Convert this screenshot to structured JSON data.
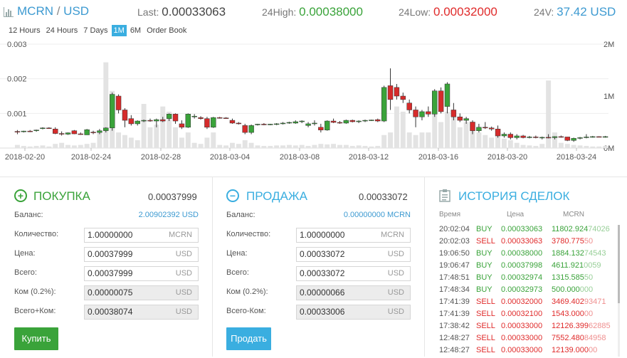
{
  "header": {
    "pair_base": "MCRN",
    "pair_sep": " / ",
    "pair_quote": "USD",
    "last_label": "Last: ",
    "last_value": "0.00033063",
    "high_label": "24High: ",
    "high_value": "0.00038000",
    "low_label": "24Low: ",
    "low_value": "0.00032000",
    "vol_label": "24V: ",
    "vol_value": "37.42 USD"
  },
  "tabs": [
    {
      "label": "12 Hours",
      "active": false
    },
    {
      "label": "24 Hours",
      "active": false
    },
    {
      "label": "7 Days",
      "active": false
    },
    {
      "label": "1M",
      "active": true
    },
    {
      "label": "6M",
      "active": false
    },
    {
      "label": "Order Book",
      "active": false
    }
  ],
  "chart_data": {
    "type": "candlestick",
    "y_left_ticks": [
      "0.003",
      "0.002",
      "0.001"
    ],
    "y_right_ticks": [
      "2M",
      "1M",
      "0M"
    ],
    "ylim": [
      0,
      0.003
    ],
    "vol_lim": [
      0,
      2000000
    ],
    "x_ticks": [
      "2018-02-20",
      "2018-02-24",
      "2018-02-28",
      "2018-03-04",
      "2018-03-08",
      "2018-03-12",
      "2018-03-16",
      "2018-03-20",
      "2018-03-24"
    ],
    "colors": {
      "up": "#3aa33a",
      "down": "#d62b2b",
      "volume": "#e3e3e3",
      "grid": "#eeeeee"
    },
    "candles": [
      {
        "o": 0.00048,
        "h": 0.00052,
        "l": 0.0004,
        "c": 0.00047,
        "v": 60000
      },
      {
        "o": 0.00047,
        "h": 0.0005,
        "l": 0.00045,
        "c": 0.00049,
        "v": 40000
      },
      {
        "o": 0.00049,
        "h": 0.00052,
        "l": 0.00046,
        "c": 0.00047,
        "v": 30000
      },
      {
        "o": 0.0005,
        "h": 0.00053,
        "l": 0.00047,
        "c": 0.00052,
        "v": 40000
      },
      {
        "o": 0.00056,
        "h": 0.0006,
        "l": 0.00054,
        "c": 0.00058,
        "v": 50000
      },
      {
        "o": 0.00058,
        "h": 0.0006,
        "l": 0.00056,
        "c": 0.00057,
        "v": 30000
      },
      {
        "o": 0.00055,
        "h": 0.0006,
        "l": 0.0004,
        "c": 0.00042,
        "v": 80000
      },
      {
        "o": 0.00042,
        "h": 0.00048,
        "l": 0.00036,
        "c": 0.0004,
        "v": 100000
      },
      {
        "o": 0.0004,
        "h": 0.00045,
        "l": 0.00038,
        "c": 0.00044,
        "v": 60000
      },
      {
        "o": 0.0005,
        "h": 0.00052,
        "l": 0.0004,
        "c": 0.00041,
        "v": 50000
      },
      {
        "o": 0.00041,
        "h": 0.00045,
        "l": 0.00038,
        "c": 0.00039,
        "v": 60000
      },
      {
        "o": 0.00038,
        "h": 0.00055,
        "l": 0.00038,
        "c": 0.00053,
        "v": 80000
      },
      {
        "o": 0.00046,
        "h": 0.0005,
        "l": 0.0004,
        "c": 0.00045,
        "v": 100000
      },
      {
        "o": 0.00045,
        "h": 0.00055,
        "l": 0.0004,
        "c": 0.0005,
        "v": 300000
      },
      {
        "o": 0.0005,
        "h": 0.0006,
        "l": 0.00045,
        "c": 0.00058,
        "v": 1650000
      },
      {
        "o": 0.00058,
        "h": 0.0016,
        "l": 0.0005,
        "c": 0.00155,
        "v": 1100000
      },
      {
        "o": 0.0015,
        "h": 0.00155,
        "l": 0.001,
        "c": 0.0011,
        "v": 300000
      },
      {
        "o": 0.0011,
        "h": 0.00115,
        "l": 0.0006,
        "c": 0.0008,
        "v": 250000
      },
      {
        "o": 0.00085,
        "h": 0.00095,
        "l": 0.00065,
        "c": 0.0007,
        "v": 200000
      },
      {
        "o": 0.0007,
        "h": 0.0008,
        "l": 0.00065,
        "c": 0.00078,
        "v": 150000
      },
      {
        "o": 0.00078,
        "h": 0.00082,
        "l": 0.00075,
        "c": 0.0008,
        "v": 850000
      },
      {
        "o": 0.0008,
        "h": 0.00085,
        "l": 0.00076,
        "c": 0.00078,
        "v": 400000
      },
      {
        "o": 0.00078,
        "h": 0.00085,
        "l": 0.0006,
        "c": 0.00082,
        "v": 450000
      },
      {
        "o": 0.00082,
        "h": 0.0009,
        "l": 0.00075,
        "c": 0.00078,
        "v": 800000
      },
      {
        "o": 0.00085,
        "h": 0.001,
        "l": 0.00078,
        "c": 0.00098,
        "v": 700000
      },
      {
        "o": 0.00098,
        "h": 0.001,
        "l": 0.0007,
        "c": 0.00078,
        "v": 400000
      },
      {
        "o": 0.0007,
        "h": 0.0008,
        "l": 0.00055,
        "c": 0.0006,
        "v": 200000
      },
      {
        "o": 0.0006,
        "h": 0.001,
        "l": 0.00058,
        "c": 0.00098,
        "v": 300000
      },
      {
        "o": 0.0009,
        "h": 0.00098,
        "l": 0.00085,
        "c": 0.00092,
        "v": 100000
      },
      {
        "o": 0.00088,
        "h": 0.00092,
        "l": 0.00082,
        "c": 0.00085,
        "v": 80000
      },
      {
        "o": 0.00085,
        "h": 0.0009,
        "l": 0.00055,
        "c": 0.0006,
        "v": 200000
      },
      {
        "o": 0.0006,
        "h": 0.0009,
        "l": 0.00058,
        "c": 0.00088,
        "v": 300000
      },
      {
        "o": 0.00088,
        "h": 0.0009,
        "l": 0.00085,
        "c": 0.00087,
        "v": 60000
      },
      {
        "o": 0.00087,
        "h": 0.00089,
        "l": 0.00085,
        "c": 0.00086,
        "v": 50000
      },
      {
        "o": 0.0008,
        "h": 0.00085,
        "l": 0.0007,
        "c": 0.00072,
        "v": 100000
      },
      {
        "o": 0.00072,
        "h": 0.00075,
        "l": 0.00068,
        "c": 0.0007,
        "v": 80000
      },
      {
        "o": 0.00065,
        "h": 0.0007,
        "l": 0.0004,
        "c": 0.00045,
        "v": 150000
      },
      {
        "o": 0.00045,
        "h": 0.00068,
        "l": 0.0004,
        "c": 0.00065,
        "v": 100000
      },
      {
        "o": 0.00068,
        "h": 0.0007,
        "l": 0.00065,
        "c": 0.00069,
        "v": 50000
      },
      {
        "o": 0.00069,
        "h": 0.00072,
        "l": 0.00066,
        "c": 0.00068,
        "v": 40000
      },
      {
        "o": 0.00068,
        "h": 0.0007,
        "l": 0.00066,
        "c": 0.00069,
        "v": 40000
      },
      {
        "o": 0.00069,
        "h": 0.00072,
        "l": 0.00066,
        "c": 0.0007,
        "v": 50000
      },
      {
        "o": 0.0007,
        "h": 0.00075,
        "l": 0.00068,
        "c": 0.00072,
        "v": 50000
      },
      {
        "o": 0.00072,
        "h": 0.00076,
        "l": 0.0007,
        "c": 0.00074,
        "v": 60000
      },
      {
        "o": 0.00072,
        "h": 0.0008,
        "l": 0.0007,
        "c": 0.00076,
        "v": 50000
      },
      {
        "o": 0.00076,
        "h": 0.0008,
        "l": 0.00072,
        "c": 0.00078,
        "v": 60000
      },
      {
        "o": 0.00065,
        "h": 0.00075,
        "l": 0.0006,
        "c": 0.0007,
        "v": 40000
      },
      {
        "o": 0.0007,
        "h": 0.0008,
        "l": 0.00065,
        "c": 0.00072,
        "v": 60000
      },
      {
        "o": 0.0006,
        "h": 0.0007,
        "l": 0.00045,
        "c": 0.00052,
        "v": 80000
      },
      {
        "o": 0.00052,
        "h": 0.0008,
        "l": 0.0005,
        "c": 0.00078,
        "v": 70000
      },
      {
        "o": 0.00078,
        "h": 0.00085,
        "l": 0.00072,
        "c": 0.00074,
        "v": 80000
      },
      {
        "o": 0.00074,
        "h": 0.00078,
        "l": 0.0007,
        "c": 0.00072,
        "v": 60000
      },
      {
        "o": 0.00072,
        "h": 0.00082,
        "l": 0.0007,
        "c": 0.0008,
        "v": 60000
      },
      {
        "o": 0.0008,
        "h": 0.00082,
        "l": 0.00074,
        "c": 0.00076,
        "v": 40000
      },
      {
        "o": 0.00076,
        "h": 0.0008,
        "l": 0.00072,
        "c": 0.00078,
        "v": 50000
      },
      {
        "o": 0.00078,
        "h": 0.00082,
        "l": 0.00075,
        "c": 0.0008,
        "v": 40000
      },
      {
        "o": 0.0008,
        "h": 0.00082,
        "l": 0.00078,
        "c": 0.00081,
        "v": 30000
      },
      {
        "o": 0.00082,
        "h": 0.00085,
        "l": 0.00075,
        "c": 0.00078,
        "v": 40000
      },
      {
        "o": 0.00078,
        "h": 0.0018,
        "l": 0.00075,
        "c": 0.00175,
        "v": 250000
      },
      {
        "o": 0.0018,
        "h": 0.0023,
        "l": 0.0011,
        "c": 0.0014,
        "v": 300000
      },
      {
        "o": 0.00175,
        "h": 0.00185,
        "l": 0.0014,
        "c": 0.0015,
        "v": 800000
      },
      {
        "o": 0.0015,
        "h": 0.0016,
        "l": 0.0013,
        "c": 0.0014,
        "v": 700000
      },
      {
        "o": 0.0013,
        "h": 0.0014,
        "l": 0.001,
        "c": 0.0011,
        "v": 300000
      },
      {
        "o": 0.0011,
        "h": 0.0012,
        "l": 0.0006,
        "c": 0.0009,
        "v": 250000
      },
      {
        "o": 0.0009,
        "h": 0.0011,
        "l": 0.0008,
        "c": 0.00105,
        "v": 300000
      },
      {
        "o": 0.00105,
        "h": 0.0012,
        "l": 0.0009,
        "c": 0.00098,
        "v": 300000
      },
      {
        "o": 0.00098,
        "h": 0.0017,
        "l": 0.0009,
        "c": 0.00165,
        "v": 800000
      },
      {
        "o": 0.00165,
        "h": 0.00175,
        "l": 0.001,
        "c": 0.00105,
        "v": 500000
      },
      {
        "o": 0.0012,
        "h": 0.0019,
        "l": 0.001,
        "c": 0.00185,
        "v": 700000
      },
      {
        "o": 0.0011,
        "h": 0.0013,
        "l": 0.0008,
        "c": 0.0009,
        "v": 600000
      },
      {
        "o": 0.0009,
        "h": 0.001,
        "l": 0.00075,
        "c": 0.0008,
        "v": 400000
      },
      {
        "o": 0.0008,
        "h": 0.0009,
        "l": 0.0007,
        "c": 0.00085,
        "v": 500000
      },
      {
        "o": 0.00075,
        "h": 0.0008,
        "l": 0.0004,
        "c": 0.0005,
        "v": 450000
      },
      {
        "o": 0.0005,
        "h": 0.0007,
        "l": 0.00045,
        "c": 0.0006,
        "v": 300000
      },
      {
        "o": 0.0006,
        "h": 0.00075,
        "l": 0.00055,
        "c": 0.00058,
        "v": 250000
      },
      {
        "o": 0.00058,
        "h": 0.00062,
        "l": 0.0005,
        "c": 0.00055,
        "v": 200000
      },
      {
        "o": 0.00055,
        "h": 0.00065,
        "l": 0.0003,
        "c": 0.00035,
        "v": 300000
      },
      {
        "o": 0.00035,
        "h": 0.00045,
        "l": 0.0003,
        "c": 0.0004,
        "v": 180000
      },
      {
        "o": 0.0004,
        "h": 0.00045,
        "l": 0.00025,
        "c": 0.0003,
        "v": 150000
      },
      {
        "o": 0.0003,
        "h": 0.0004,
        "l": 0.00025,
        "c": 0.00035,
        "v": 100000
      },
      {
        "o": 0.00035,
        "h": 0.00038,
        "l": 0.00028,
        "c": 0.0003,
        "v": 60000
      },
      {
        "o": 0.0003,
        "h": 0.00035,
        "l": 0.00028,
        "c": 0.00032,
        "v": 50000
      },
      {
        "o": 0.00032,
        "h": 0.00036,
        "l": 0.00028,
        "c": 0.0003,
        "v": 40000
      },
      {
        "o": 0.0003,
        "h": 0.00033,
        "l": 0.00025,
        "c": 0.00031,
        "v": 80000
      },
      {
        "o": 0.00031,
        "h": 0.0004,
        "l": 0.00028,
        "c": 0.0003,
        "v": 1300000
      },
      {
        "o": 0.0003,
        "h": 0.00034,
        "l": 0.00025,
        "c": 0.00033,
        "v": 300000
      },
      {
        "o": 0.00033,
        "h": 0.00036,
        "l": 0.0003,
        "c": 0.00032,
        "v": 100000
      },
      {
        "o": 0.00032,
        "h": 0.0003,
        "l": 0.0002,
        "c": 0.00022,
        "v": 80000
      },
      {
        "o": 0.00022,
        "h": 0.0003,
        "l": 0.00018,
        "c": 0.00028,
        "v": 60000
      },
      {
        "o": 0.00028,
        "h": 0.00032,
        "l": 0.00025,
        "c": 0.0003,
        "v": 50000
      },
      {
        "o": 0.0003,
        "h": 0.0004,
        "l": 0.00028,
        "c": 0.00032,
        "v": 40000
      },
      {
        "o": 0.00032,
        "h": 0.00035,
        "l": 0.0003,
        "c": 0.00033,
        "v": 30000
      },
      {
        "o": 0.00033,
        "h": 0.00034,
        "l": 0.00031,
        "c": 0.00032,
        "v": 30000
      },
      {
        "o": 0.00032,
        "h": 0.00035,
        "l": 0.0003,
        "c": 0.00033,
        "v": 40000
      }
    ]
  },
  "buy": {
    "title": "ПОКУПКА",
    "price": "0.00037999",
    "balance_label": "Баланс:",
    "balance_value": "2.00902392 USD",
    "qty_label": "Количество:",
    "qty_value": "1.00000000",
    "qty_unit": "MCRN",
    "price_label": "Цена:",
    "price_value": "0.00037999",
    "price_unit": "USD",
    "total_label": "Всего:",
    "total_value": "0.00037999",
    "total_unit": "USD",
    "fee_label": "Ком (0.2%):",
    "fee_value": "0.00000075",
    "fee_unit": "USD",
    "grand_label": "Всего+Ком:",
    "grand_value": "0.00038074",
    "grand_unit": "USD",
    "button": "Купить",
    "color": "#3aa33a"
  },
  "sell": {
    "title": "ПРОДАЖА",
    "price": "0.00033072",
    "balance_label": "Баланс:",
    "balance_value": "0.00000000 MCRN",
    "qty_label": "Количество:",
    "qty_value": "1.00000000",
    "qty_unit": "MCRN",
    "price_label": "Цена:",
    "price_value": "0.00033072",
    "price_unit": "USD",
    "total_label": "Всего:",
    "total_value": "0.00033072",
    "total_unit": "USD",
    "fee_label": "Ком (0.2%):",
    "fee_value": "0.00000066",
    "fee_unit": "USD",
    "grand_label": "Всего-Ком:",
    "grand_value": "0.00033006",
    "grand_unit": "USD",
    "button": "Продать",
    "color": "#3aaee0"
  },
  "history": {
    "title": "ИСТОРИЯ СДЕЛОК",
    "col_time": "Время",
    "col_price": "Цена",
    "col_amount": "MCRN",
    "rows": [
      {
        "time": "20:02:04",
        "side": "BUY",
        "price": "0.00033063",
        "amt_main": "11802.924",
        "amt_tail": "74026"
      },
      {
        "time": "20:02:03",
        "side": "SELL",
        "price": "0.00033063",
        "amt_main": "3780.775",
        "amt_tail": "50"
      },
      {
        "time": "19:06:50",
        "side": "BUY",
        "price": "0.00038000",
        "amt_main": "1884.132",
        "amt_tail": "74543"
      },
      {
        "time": "19:06:47",
        "side": "BUY",
        "price": "0.00037998",
        "amt_main": "4611.921",
        "amt_tail": "0059"
      },
      {
        "time": "17:48:51",
        "side": "BUY",
        "price": "0.00032974",
        "amt_main": "1315.585",
        "amt_tail": "50"
      },
      {
        "time": "17:48:34",
        "side": "BUY",
        "price": "0.00032973",
        "amt_main": "500.000",
        "amt_tail": "000"
      },
      {
        "time": "17:41:39",
        "side": "SELL",
        "price": "0.00032000",
        "amt_main": "3469.402",
        "amt_tail": "93471"
      },
      {
        "time": "17:41:39",
        "side": "SELL",
        "price": "0.00032100",
        "amt_main": "1543.000",
        "amt_tail": "00"
      },
      {
        "time": "17:38:42",
        "side": "SELL",
        "price": "0.00033000",
        "amt_main": "12126.399",
        "amt_tail": "62885"
      },
      {
        "time": "12:48:27",
        "side": "SELL",
        "price": "0.00033000",
        "amt_main": "7552.480",
        "amt_tail": "84958"
      },
      {
        "time": "12:48:27",
        "side": "SELL",
        "price": "0.00033000",
        "amt_main": "12139.000",
        "amt_tail": "00"
      }
    ]
  }
}
